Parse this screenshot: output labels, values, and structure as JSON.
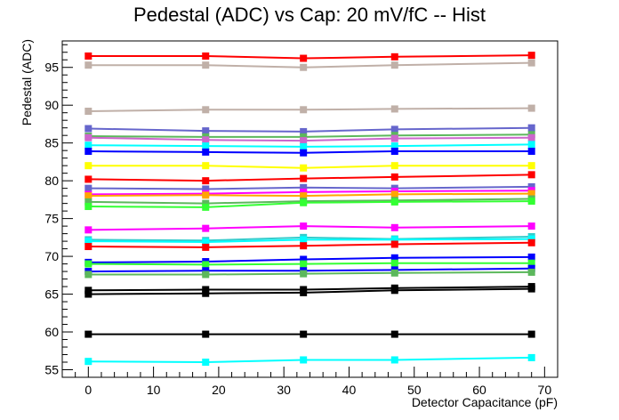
{
  "chart_data": {
    "type": "line",
    "title": "Pedestal (ADC) vs Cap: 20 mV/fC -- Hist",
    "xlabel": "Detector Capacitance (pF)",
    "ylabel": "Pedestal (ADC)",
    "xlim": [
      -4,
      72
    ],
    "ylim": [
      54,
      98.5
    ],
    "x_ticks": [
      0,
      10,
      20,
      30,
      40,
      50,
      60,
      70
    ],
    "y_ticks": [
      55,
      60,
      65,
      70,
      75,
      80,
      85,
      90,
      95
    ],
    "grid": false,
    "legend": "none",
    "x": [
      0,
      18,
      33,
      47,
      68
    ],
    "series": [
      {
        "color": "#ff0000",
        "values": [
          96.5,
          96.5,
          96.2,
          96.4,
          96.6
        ]
      },
      {
        "color": "#c0b0a8",
        "values": [
          95.3,
          95.3,
          95.0,
          95.3,
          95.6
        ]
      },
      {
        "color": "#c0b0a8",
        "values": [
          89.2,
          89.4,
          89.4,
          89.5,
          89.6
        ]
      },
      {
        "color": "#6666cc",
        "values": [
          86.9,
          86.6,
          86.5,
          86.8,
          87.0
        ]
      },
      {
        "color": "#5cb85c",
        "values": [
          85.9,
          85.8,
          85.8,
          86.0,
          86.1
        ]
      },
      {
        "color": "#cc66cc",
        "values": [
          85.7,
          85.4,
          85.3,
          85.6,
          85.7
        ]
      },
      {
        "color": "#00ffff",
        "values": [
          84.7,
          84.6,
          84.5,
          84.6,
          84.8
        ]
      },
      {
        "color": "#0000ff",
        "values": [
          83.9,
          83.8,
          83.7,
          83.9,
          83.9
        ]
      },
      {
        "color": "#ffff00",
        "values": [
          82.0,
          82.0,
          81.7,
          82.0,
          82.0
        ]
      },
      {
        "color": "#ff0000",
        "values": [
          80.2,
          80.0,
          80.3,
          80.5,
          80.8
        ]
      },
      {
        "color": "#6666cc",
        "values": [
          79.0,
          78.9,
          79.1,
          79.0,
          79.2
        ]
      },
      {
        "color": "#ff00ff",
        "values": [
          78.2,
          78.3,
          78.5,
          78.6,
          78.7
        ]
      },
      {
        "color": "#ffa500",
        "values": [
          78.0,
          78.1,
          78.0,
          78.2,
          78.3
        ]
      },
      {
        "color": "#5cb85c",
        "values": [
          77.2,
          77.0,
          77.3,
          77.4,
          77.6
        ]
      },
      {
        "color": "#33ff33",
        "values": [
          76.6,
          76.5,
          77.1,
          77.2,
          77.3
        ]
      },
      {
        "color": "#ff00ff",
        "values": [
          73.5,
          73.7,
          74.0,
          73.8,
          74.0
        ]
      },
      {
        "color": "#33cccc",
        "values": [
          72.2,
          72.1,
          72.5,
          72.3,
          72.6
        ]
      },
      {
        "color": "#00ffff",
        "values": [
          72.0,
          71.9,
          72.2,
          72.2,
          72.3
        ]
      },
      {
        "color": "#ff0000",
        "values": [
          71.3,
          71.2,
          71.4,
          71.6,
          71.8
        ]
      },
      {
        "color": "#0000ff",
        "values": [
          69.2,
          69.3,
          69.6,
          69.8,
          69.9
        ]
      },
      {
        "color": "#33ff33",
        "values": [
          69.0,
          68.9,
          69.0,
          69.1,
          69.1
        ]
      },
      {
        "color": "#0000ff",
        "values": [
          68.0,
          68.1,
          68.1,
          68.2,
          68.4
        ]
      },
      {
        "color": "#5cb85c",
        "values": [
          67.6,
          67.6,
          67.7,
          67.8,
          67.9
        ]
      },
      {
        "color": "#000000",
        "values": [
          65.5,
          65.6,
          65.6,
          65.8,
          66.0
        ]
      },
      {
        "color": "#000000",
        "values": [
          65.0,
          65.1,
          65.2,
          65.5,
          65.7
        ]
      },
      {
        "color": "#000000",
        "values": [
          59.7,
          59.7,
          59.7,
          59.7,
          59.7
        ]
      },
      {
        "color": "#00ffff",
        "values": [
          56.1,
          56.0,
          56.3,
          56.3,
          56.6
        ]
      }
    ]
  }
}
